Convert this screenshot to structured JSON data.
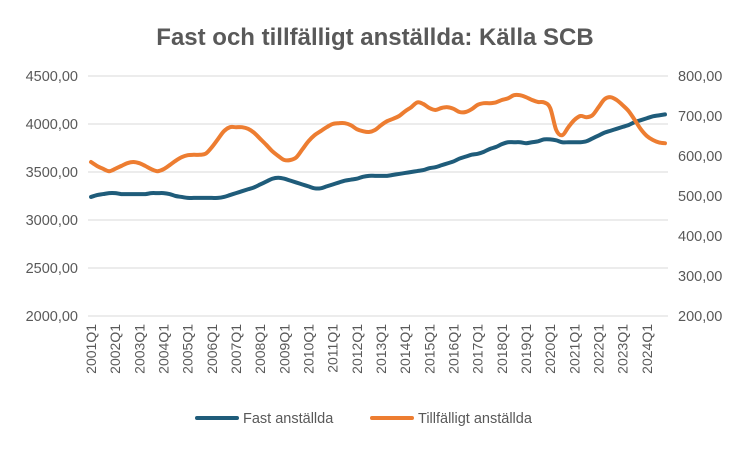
{
  "chart_data": {
    "type": "line",
    "title": "Fast och tillfälligt anställda: Källa SCB",
    "xlabel": "",
    "ylabel": "",
    "grid": true,
    "legend_position": "bottom",
    "x_tick_labels": [
      "2001Q1",
      "2002Q1",
      "2003Q1",
      "2004Q1",
      "2005Q1",
      "2006Q1",
      "2007Q1",
      "2008Q1",
      "2009Q1",
      "2010Q1",
      "2011Q1",
      "2012Q1",
      "2013Q1",
      "2014Q1",
      "2015Q1",
      "2016Q1",
      "2017Q1",
      "2018Q1",
      "2019Q1",
      "2020Q1",
      "2021Q1",
      "2022Q1",
      "2023Q1",
      "2024Q1"
    ],
    "y_left": {
      "min": 2000,
      "max": 4500,
      "ticks": [
        "2000,00",
        "2500,00",
        "3000,00",
        "3500,00",
        "4000,00",
        "4500,00"
      ]
    },
    "y_right": {
      "min": 200,
      "max": 800,
      "ticks": [
        "200,00",
        "300,00",
        "400,00",
        "500,00",
        "600,00",
        "700,00",
        "800,00"
      ]
    },
    "x_start": "2001Q1",
    "x_end": "2024Q4",
    "series": [
      {
        "name": "Fast anställda",
        "axis": "left",
        "color": "#1f5c7a",
        "values": [
          3240,
          3260,
          3270,
          3280,
          3280,
          3270,
          3270,
          3270,
          3270,
          3270,
          3280,
          3280,
          3280,
          3270,
          3250,
          3240,
          3230,
          3230,
          3230,
          3230,
          3230,
          3230,
          3240,
          3260,
          3280,
          3300,
          3320,
          3340,
          3370,
          3400,
          3430,
          3440,
          3430,
          3410,
          3390,
          3370,
          3350,
          3330,
          3330,
          3350,
          3370,
          3390,
          3410,
          3420,
          3430,
          3450,
          3460,
          3460,
          3460,
          3460,
          3470,
          3480,
          3490,
          3500,
          3510,
          3520,
          3540,
          3550,
          3570,
          3590,
          3610,
          3640,
          3660,
          3680,
          3690,
          3710,
          3740,
          3760,
          3790,
          3810,
          3810,
          3810,
          3800,
          3810,
          3820,
          3840,
          3840,
          3830,
          3810,
          3810,
          3810,
          3810,
          3820,
          3850,
          3880,
          3910,
          3930,
          3950,
          3970,
          3990,
          4020,
          4040,
          4060,
          4080,
          4090,
          4100
        ]
      },
      {
        "name": "Tillfälligt anställda",
        "axis": "right",
        "color": "#ed7d31",
        "values": [
          585,
          575,
          568,
          562,
          568,
          575,
          582,
          585,
          582,
          575,
          567,
          562,
          567,
          577,
          588,
          597,
          602,
          603,
          603,
          606,
          622,
          642,
          662,
          672,
          672,
          672,
          668,
          658,
          643,
          628,
          612,
          600,
          590,
          590,
          597,
          617,
          637,
          652,
          662,
          672,
          680,
          682,
          682,
          677,
          667,
          662,
          660,
          665,
          677,
          687,
          693,
          700,
          712,
          722,
          734,
          730,
          720,
          715,
          720,
          722,
          718,
          710,
          710,
          717,
          728,
          732,
          732,
          734,
          740,
          744,
          752,
          752,
          747,
          740,
          735,
          734,
          720,
          665,
          652,
          672,
          690,
          700,
          697,
          702,
          722,
          742,
          747,
          740,
          727,
          712,
          690,
          667,
          650,
          640,
          634,
          632
        ]
      }
    ]
  }
}
